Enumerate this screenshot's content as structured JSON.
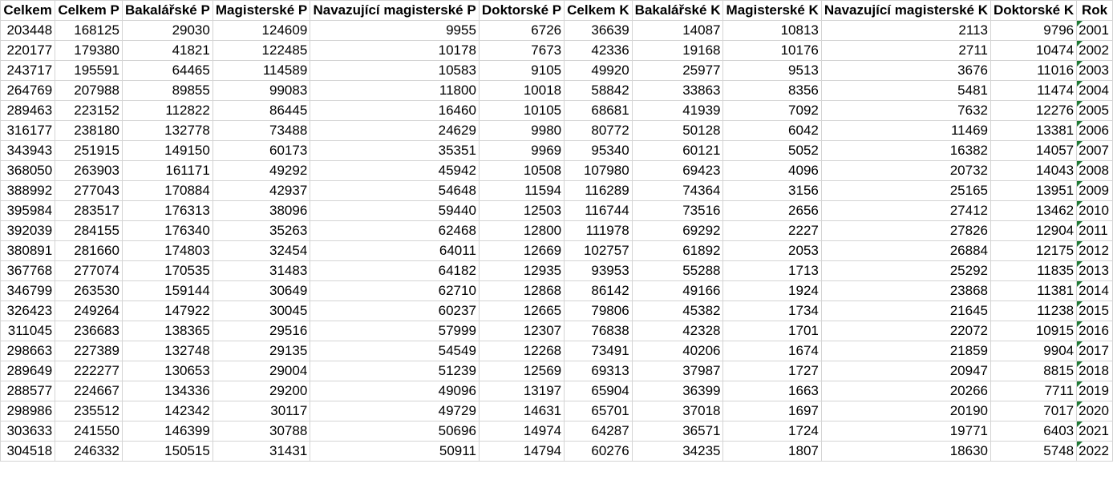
{
  "sheet": {
    "headers": [
      "Celkem",
      "Celkem P",
      "Bakalářské P",
      "Magisterské P",
      "Navazující magisterské P",
      "Doktorské P",
      "Celkem K",
      "Bakalářské K",
      "Magisterské K",
      "Navazující magisterské K",
      "Doktorské K",
      "Rok"
    ],
    "rows": [
      [
        "203448",
        "168125",
        "29030",
        "124609",
        "9955",
        "6726",
        "36639",
        "14087",
        "10813",
        "2113",
        "9796",
        "2001"
      ],
      [
        "220177",
        "179380",
        "41821",
        "122485",
        "10178",
        "7673",
        "42336",
        "19168",
        "10176",
        "2711",
        "10474",
        "2002"
      ],
      [
        "243717",
        "195591",
        "64465",
        "114589",
        "10583",
        "9105",
        "49920",
        "25977",
        "9513",
        "3676",
        "11016",
        "2003"
      ],
      [
        "264769",
        "207988",
        "89855",
        "99083",
        "11800",
        "10018",
        "58842",
        "33863",
        "8356",
        "5481",
        "11474",
        "2004"
      ],
      [
        "289463",
        "223152",
        "112822",
        "86445",
        "16460",
        "10105",
        "68681",
        "41939",
        "7092",
        "7632",
        "12276",
        "2005"
      ],
      [
        "316177",
        "238180",
        "132778",
        "73488",
        "24629",
        "9980",
        "80772",
        "50128",
        "6042",
        "11469",
        "13381",
        "2006"
      ],
      [
        "343943",
        "251915",
        "149150",
        "60173",
        "35351",
        "9969",
        "95340",
        "60121",
        "5052",
        "16382",
        "14057",
        "2007"
      ],
      [
        "368050",
        "263903",
        "161171",
        "49292",
        "45942",
        "10508",
        "107980",
        "69423",
        "4096",
        "20732",
        "14043",
        "2008"
      ],
      [
        "388992",
        "277043",
        "170884",
        "42937",
        "54648",
        "11594",
        "116289",
        "74364",
        "3156",
        "25165",
        "13951",
        "2009"
      ],
      [
        "395984",
        "283517",
        "176313",
        "38096",
        "59440",
        "12503",
        "116744",
        "73516",
        "2656",
        "27412",
        "13462",
        "2010"
      ],
      [
        "392039",
        "284155",
        "176340",
        "35263",
        "62468",
        "12800",
        "111978",
        "69292",
        "2227",
        "27826",
        "12904",
        "2011"
      ],
      [
        "380891",
        "281660",
        "174803",
        "32454",
        "64011",
        "12669",
        "102757",
        "61892",
        "2053",
        "26884",
        "12175",
        "2012"
      ],
      [
        "367768",
        "277074",
        "170535",
        "31483",
        "64182",
        "12935",
        "93953",
        "55288",
        "1713",
        "25292",
        "11835",
        "2013"
      ],
      [
        "346799",
        "263530",
        "159144",
        "30649",
        "62710",
        "12868",
        "86142",
        "49166",
        "1924",
        "23868",
        "11381",
        "2014"
      ],
      [
        "326423",
        "249264",
        "147922",
        "30045",
        "60237",
        "12665",
        "79806",
        "45382",
        "1734",
        "21645",
        "11238",
        "2015"
      ],
      [
        "311045",
        "236683",
        "138365",
        "29516",
        "57999",
        "12307",
        "76838",
        "42328",
        "1701",
        "22072",
        "10915",
        "2016"
      ],
      [
        "298663",
        "227389",
        "132748",
        "29135",
        "54549",
        "12268",
        "73491",
        "40206",
        "1674",
        "21859",
        "9904",
        "2017"
      ],
      [
        "289649",
        "222277",
        "130653",
        "29004",
        "51239",
        "12569",
        "69313",
        "37987",
        "1727",
        "20947",
        "8815",
        "2018"
      ],
      [
        "288577",
        "224667",
        "134336",
        "29200",
        "49096",
        "13197",
        "65904",
        "36399",
        "1663",
        "20266",
        "7711",
        "2019"
      ],
      [
        "298986",
        "235512",
        "142342",
        "30117",
        "49729",
        "14631",
        "65701",
        "37018",
        "1697",
        "20190",
        "7017",
        "2020"
      ],
      [
        "303633",
        "241550",
        "146399",
        "30788",
        "50696",
        "14974",
        "64287",
        "36571",
        "1724",
        "19771",
        "6403",
        "2021"
      ],
      [
        "304518",
        "246332",
        "150515",
        "31431",
        "50911",
        "14794",
        "60276",
        "34235",
        "1807",
        "18630",
        "5748",
        "2022"
      ]
    ],
    "colors": {
      "grid": "#d4d4d4",
      "error_flag": "#1e7b34"
    }
  }
}
